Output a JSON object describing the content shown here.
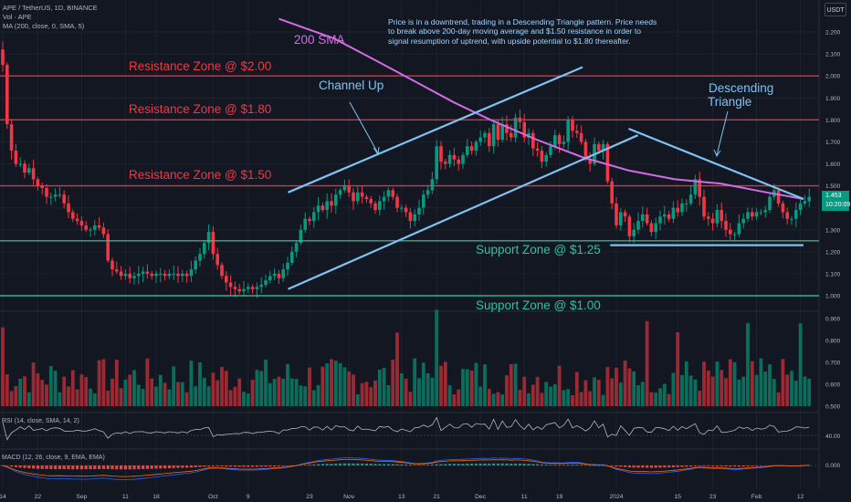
{
  "header": {
    "symbol_line": "APE / TetherUS, 1D, BINANCE",
    "volume_label": "Vol · APE",
    "ma_label": "MA (200, close, 0, SMA, 5)",
    "currency_button": "USDT"
  },
  "note_text": "Price is in a downtrend, trading in a Descending Triangle pattern. Price needs to break above 200-day moving average and $1.50 resistance in order to signal resumption of uptrend, with upside potential to $1.80 thereafter.",
  "annotations": {
    "sma_label": "200 SMA",
    "channel_label": "Channel Up",
    "triangle_label_1": "Descending",
    "triangle_label_2": "Triangle",
    "resistance_200": "Resistance Zone @ $2.00",
    "resistance_180": "Resistance Zone @ $1.80",
    "resistance_150": "Resistance Zone @ $1.50",
    "support_125": "Support Zone @ $1.25",
    "support_100": "Support Zone @ $1.00"
  },
  "price_badge": {
    "price": "1.453",
    "countdown": "10:20:09"
  },
  "indicators": {
    "rsi_label": "RSI (14, close, SMA, 14, 2)",
    "rsi_level": "40.00",
    "macd_label": "MACD (12, 26, close, 9, EMA, EMA)",
    "macd_level": "0.000"
  },
  "colors": {
    "background": "#131722",
    "up": "#089981",
    "down": "#f23645",
    "resistance": "#f23645",
    "support": "#2fc299",
    "trendline": "#7ec3f2",
    "sma": "#d36be6",
    "grid": "#1e222d"
  },
  "chart_data": {
    "type": "candlestick",
    "price_axis": {
      "range": [
        0.93,
        2.26
      ],
      "ticks": [
        "2.200",
        "2.100",
        "2.000",
        "1.900",
        "1.800",
        "1.700",
        "1.600",
        "1.500",
        "1.400",
        "1.300",
        "1.200",
        "1.100",
        "1.000"
      ]
    },
    "volume_axis": {
      "range": [
        0.44,
        0.98
      ],
      "ticks": [
        "0.900",
        "0.800",
        "0.700",
        "0.600",
        "0.500"
      ]
    },
    "x_ticks": [
      "14",
      "22",
      "Sep",
      "11",
      "18",
      "Oct",
      "9",
      "23",
      "Nov",
      "13",
      "21",
      "Dec",
      "11",
      "19",
      "2024",
      "15",
      "23",
      "Feb",
      "12"
    ],
    "x_tick_days": [
      0,
      8,
      18,
      28,
      35,
      48,
      56,
      70,
      79,
      91,
      99,
      109,
      119,
      127,
      140,
      154,
      162,
      172,
      182
    ],
    "horizontal_levels": [
      {
        "price": 2.0,
        "label": "Resistance Zone @ $2.00",
        "kind": "resistance"
      },
      {
        "price": 1.8,
        "label": "Resistance Zone @ $1.80",
        "kind": "resistance"
      },
      {
        "price": 1.5,
        "label": "Resistance Zone @ $1.50",
        "kind": "resistance"
      },
      {
        "price": 1.25,
        "label": "Support Zone @ $1.25",
        "kind": "support"
      },
      {
        "price": 1.0,
        "label": "Support Zone @ $1.00",
        "kind": "support"
      }
    ],
    "trendlines": [
      {
        "name": "Channel Up upper",
        "from": [
          31,
          1.47
        ],
        "to": [
          63,
          2.04
        ]
      },
      {
        "name": "Channel Up lower",
        "from": [
          31,
          1.03
        ],
        "to": [
          69,
          1.73
        ]
      },
      {
        "name": "Descending Triangle upper",
        "from": [
          68,
          1.76
        ],
        "to": [
          87,
          1.44
        ]
      },
      {
        "name": "Descending Triangle base",
        "from": [
          66,
          1.23
        ],
        "to": [
          87,
          1.23
        ]
      }
    ],
    "sma_200": [
      [
        30,
        2.26
      ],
      [
        36,
        2.17
      ],
      [
        41,
        2.06
      ],
      [
        45,
        1.97
      ],
      [
        49,
        1.88
      ],
      [
        53,
        1.8
      ],
      [
        58,
        1.71
      ],
      [
        63,
        1.63
      ],
      [
        68,
        1.57
      ],
      [
        73,
        1.53
      ],
      [
        78,
        1.51
      ],
      [
        83,
        1.47
      ],
      [
        87,
        1.44
      ]
    ],
    "candle_closes": [
      2.05,
      1.78,
      1.66,
      1.6,
      1.6,
      1.56,
      1.58,
      1.53,
      1.5,
      1.49,
      1.45,
      1.45,
      1.46,
      1.46,
      1.42,
      1.38,
      1.35,
      1.34,
      1.32,
      1.3,
      1.3,
      1.32,
      1.31,
      1.28,
      1.16,
      1.12,
      1.11,
      1.09,
      1.1,
      1.08,
      1.09,
      1.1,
      1.11,
      1.1,
      1.09,
      1.1,
      1.1,
      1.09,
      1.1,
      1.1,
      1.09,
      1.1,
      1.09,
      1.12,
      1.16,
      1.19,
      1.24,
      1.29,
      1.19,
      1.14,
      1.09,
      1.06,
      1.04,
      1.03,
      1.02,
      1.03,
      1.04,
      1.03,
      1.04,
      1.05,
      1.07,
      1.09,
      1.1,
      1.08,
      1.12,
      1.15,
      1.2,
      1.24,
      1.3,
      1.35,
      1.34,
      1.38,
      1.41,
      1.39,
      1.43,
      1.41,
      1.46,
      1.48,
      1.5,
      1.47,
      1.43,
      1.47,
      1.45,
      1.44,
      1.42,
      1.39,
      1.43,
      1.45,
      1.48,
      1.45,
      1.4,
      1.4,
      1.38,
      1.34,
      1.37,
      1.4,
      1.46,
      1.48,
      1.53,
      1.68,
      1.61,
      1.6,
      1.64,
      1.62,
      1.6,
      1.64,
      1.68,
      1.66,
      1.7,
      1.72,
      1.74,
      1.68,
      1.78,
      1.71,
      1.78,
      1.74,
      1.72,
      1.81,
      1.79,
      1.72,
      1.74,
      1.67,
      1.66,
      1.61,
      1.64,
      1.68,
      1.73,
      1.69,
      1.7,
      1.8,
      1.75,
      1.74,
      1.7,
      1.62,
      1.6,
      1.69,
      1.66,
      1.69,
      1.52,
      1.42,
      1.32,
      1.38,
      1.36,
      1.27,
      1.3,
      1.34,
      1.37,
      1.33,
      1.29,
      1.33,
      1.36,
      1.37,
      1.35,
      1.4,
      1.38,
      1.42,
      1.42,
      1.46,
      1.53,
      1.45,
      1.36,
      1.35,
      1.33,
      1.39,
      1.34,
      1.3,
      1.28,
      1.28,
      1.33,
      1.35,
      1.38,
      1.36,
      1.38,
      1.38,
      1.39,
      1.45,
      1.48,
      1.42,
      1.38,
      1.35,
      1.35,
      1.39,
      1.42,
      1.43,
      1.45
    ],
    "volume_notes": "Volume panel in USDT millions, values range ~0.48 to ~0.94"
  }
}
